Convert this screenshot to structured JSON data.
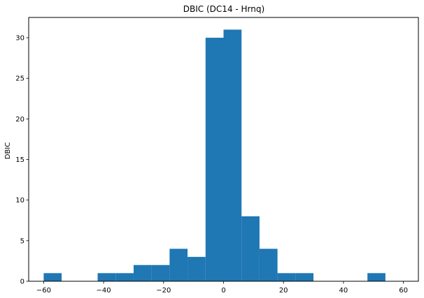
{
  "chart_data": {
    "type": "bar",
    "title": "DBIC (DC14 - Hrnq)",
    "xlabel": "",
    "ylabel": "DBIC",
    "xlim": [
      -65,
      65
    ],
    "ylim": [
      0,
      32.5
    ],
    "xticks": [
      -60,
      -40,
      -20,
      0,
      20,
      40,
      60
    ],
    "yticks": [
      0,
      5,
      10,
      15,
      20,
      25,
      30
    ],
    "grid": false,
    "bar_color": "#1f77b4",
    "bins": [
      {
        "x0": -60,
        "x1": -54,
        "count": 1
      },
      {
        "x0": -42,
        "x1": -36,
        "count": 1
      },
      {
        "x0": -36,
        "x1": -30,
        "count": 1
      },
      {
        "x0": -30,
        "x1": -24,
        "count": 2
      },
      {
        "x0": -24,
        "x1": -18,
        "count": 2
      },
      {
        "x0": -18,
        "x1": -12,
        "count": 4
      },
      {
        "x0": -12,
        "x1": -6,
        "count": 3
      },
      {
        "x0": -6,
        "x1": 0,
        "count": 30
      },
      {
        "x0": 0,
        "x1": 6,
        "count": 31
      },
      {
        "x0": 6,
        "x1": 12,
        "count": 8
      },
      {
        "x0": 12,
        "x1": 18,
        "count": 4
      },
      {
        "x0": 18,
        "x1": 24,
        "count": 1
      },
      {
        "x0": 24,
        "x1": 30,
        "count": 1
      },
      {
        "x0": 48,
        "x1": 54,
        "count": 1
      }
    ]
  }
}
